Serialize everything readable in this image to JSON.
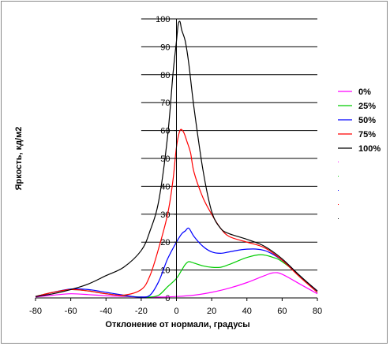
{
  "chart_data": {
    "type": "line",
    "xlabel": "Отклонение от нормали, градусы",
    "ylabel": "Яркость, кд/м2",
    "xlim": [
      -80,
      80
    ],
    "ylim": [
      0,
      100
    ],
    "x_ticks": [
      -80,
      -60,
      -40,
      -20,
      0,
      20,
      40,
      60,
      80
    ],
    "y_ticks": [
      0,
      10,
      20,
      30,
      40,
      50,
      60,
      70,
      80,
      90,
      100
    ],
    "grid": "horizontal major gridlines",
    "legend_position": "right",
    "series": [
      {
        "name": "0%",
        "color": "#ff00ff",
        "points": [
          [
            -80,
            0.3
          ],
          [
            -70,
            1
          ],
          [
            -60,
            1.5
          ],
          [
            -50,
            1.2
          ],
          [
            -40,
            0.8
          ],
          [
            -30,
            0.5
          ],
          [
            -20,
            0.3
          ],
          [
            -10,
            0.3
          ],
          [
            0,
            0.5
          ],
          [
            10,
            1
          ],
          [
            20,
            2
          ],
          [
            30,
            3.5
          ],
          [
            40,
            5.5
          ],
          [
            50,
            8
          ],
          [
            55,
            9
          ],
          [
            60,
            8.5
          ],
          [
            70,
            5
          ],
          [
            80,
            1.5
          ]
        ]
      },
      {
        "name": "25%",
        "color": "#00cc00",
        "points": [
          [
            -80,
            0.5
          ],
          [
            -70,
            2
          ],
          [
            -60,
            3
          ],
          [
            -50,
            2.5
          ],
          [
            -40,
            1.5
          ],
          [
            -30,
            0.8
          ],
          [
            -25,
            0.5
          ],
          [
            -20,
            0.3
          ],
          [
            -15,
            0.3
          ],
          [
            -10,
            1
          ],
          [
            -5,
            4
          ],
          [
            0,
            7
          ],
          [
            3,
            10
          ],
          [
            5,
            12
          ],
          [
            7,
            13
          ],
          [
            10,
            12.5
          ],
          [
            15,
            11.5
          ],
          [
            20,
            11
          ],
          [
            25,
            11
          ],
          [
            30,
            12
          ],
          [
            40,
            14.5
          ],
          [
            48,
            15.5
          ],
          [
            55,
            14.5
          ],
          [
            60,
            13
          ],
          [
            70,
            8
          ],
          [
            80,
            2
          ]
        ]
      },
      {
        "name": "50%",
        "color": "#0000ff",
        "points": [
          [
            -80,
            0.5
          ],
          [
            -70,
            2
          ],
          [
            -60,
            3.2
          ],
          [
            -50,
            3
          ],
          [
            -40,
            2
          ],
          [
            -30,
            1
          ],
          [
            -25,
            0.5
          ],
          [
            -20,
            0.3
          ],
          [
            -15,
            1
          ],
          [
            -10,
            6
          ],
          [
            -5,
            14
          ],
          [
            0,
            20
          ],
          [
            3,
            23
          ],
          [
            5,
            24
          ],
          [
            7,
            25
          ],
          [
            10,
            22
          ],
          [
            15,
            18.5
          ],
          [
            20,
            16.5
          ],
          [
            25,
            16
          ],
          [
            30,
            16.5
          ],
          [
            40,
            17.5
          ],
          [
            50,
            17
          ],
          [
            60,
            13.5
          ],
          [
            70,
            8
          ],
          [
            80,
            2
          ]
        ]
      },
      {
        "name": "75%",
        "color": "#ff0000",
        "points": [
          [
            -80,
            0.5
          ],
          [
            -70,
            2
          ],
          [
            -60,
            3
          ],
          [
            -50,
            2.5
          ],
          [
            -40,
            1.5
          ],
          [
            -30,
            1
          ],
          [
            -20,
            3
          ],
          [
            -15,
            8
          ],
          [
            -10,
            18
          ],
          [
            -5,
            30
          ],
          [
            -2,
            42
          ],
          [
            0,
            54
          ],
          [
            2,
            60
          ],
          [
            4,
            59.5
          ],
          [
            6,
            56
          ],
          [
            8,
            52
          ],
          [
            10,
            45
          ],
          [
            15,
            36
          ],
          [
            20,
            30
          ],
          [
            25,
            25
          ],
          [
            30,
            22
          ],
          [
            40,
            20
          ],
          [
            50,
            18
          ],
          [
            60,
            13.5
          ],
          [
            70,
            7.5
          ],
          [
            80,
            2
          ]
        ]
      },
      {
        "name": "100%",
        "color": "#000000",
        "points": [
          [
            -80,
            0.5
          ],
          [
            -70,
            1.5
          ],
          [
            -60,
            3
          ],
          [
            -50,
            5
          ],
          [
            -40,
            8
          ],
          [
            -30,
            11
          ],
          [
            -20,
            17
          ],
          [
            -15,
            24
          ],
          [
            -10,
            35
          ],
          [
            -5,
            58
          ],
          [
            -2,
            80
          ],
          [
            0,
            92
          ],
          [
            1,
            98
          ],
          [
            2,
            99
          ],
          [
            3,
            96
          ],
          [
            5,
            92
          ],
          [
            7,
            84
          ],
          [
            10,
            68
          ],
          [
            15,
            46
          ],
          [
            20,
            31
          ],
          [
            25,
            25
          ],
          [
            30,
            23
          ],
          [
            40,
            21
          ],
          [
            50,
            18.5
          ],
          [
            60,
            14
          ],
          [
            70,
            8
          ],
          [
            80,
            2.5
          ]
        ]
      }
    ]
  }
}
